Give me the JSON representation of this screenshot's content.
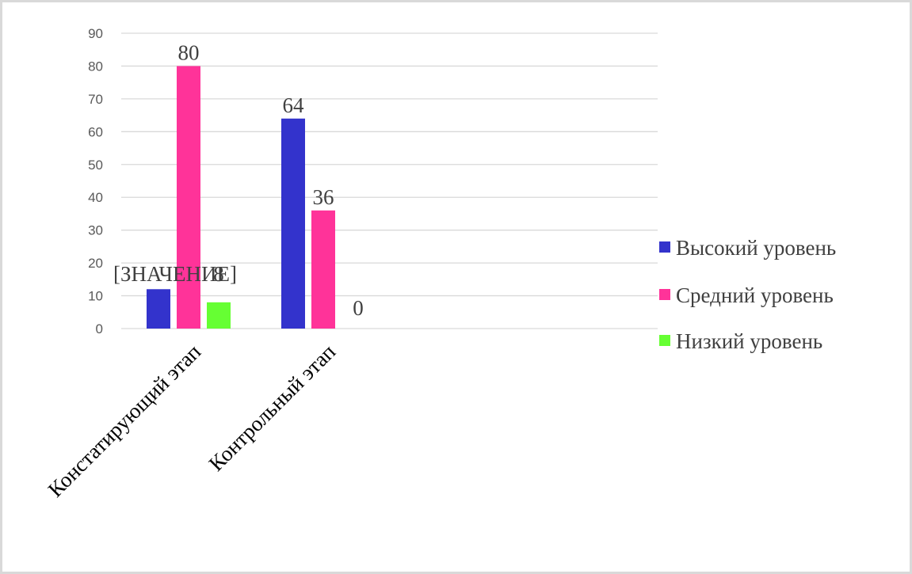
{
  "chart_data": {
    "type": "bar",
    "categories": [
      "Констатирующий этап",
      "Контрольный этап"
    ],
    "series": [
      {
        "name": "Высокий уровень",
        "color": "#3333cc",
        "values": [
          12,
          64
        ],
        "labels": [
          "[ЗНАЧЕНИЕ]",
          "64"
        ]
      },
      {
        "name": "Средний уровень",
        "color": "#ff3399",
        "values": [
          80,
          36
        ],
        "labels": [
          "80",
          "36"
        ]
      },
      {
        "name": "Низкий уровень",
        "color": "#66ff33",
        "values": [
          8,
          0
        ],
        "labels": [
          "8",
          "0"
        ]
      }
    ],
    "y_ticks": [
      "0",
      "10",
      "20",
      "30",
      "40",
      "50",
      "60",
      "70",
      "80",
      "90"
    ],
    "ylim": [
      0,
      90
    ],
    "grid": true,
    "legend_position": "right"
  }
}
